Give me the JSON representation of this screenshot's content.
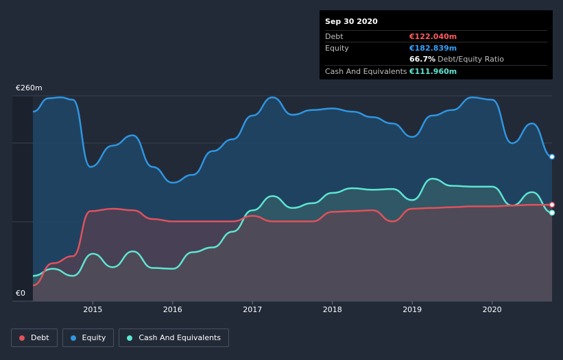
{
  "chart_data": {
    "type": "area",
    "currency_unit": "€m",
    "y_labels": [
      "€260m",
      "€0"
    ],
    "ylim": [
      0,
      260
    ],
    "x_ticks": [
      "2015",
      "2016",
      "2017",
      "2018",
      "2019",
      "2020"
    ],
    "xlim": [
      2014.25,
      2020.75
    ],
    "series": [
      {
        "name": "Equity",
        "color": "#2f96e0",
        "points": [
          [
            2014.25,
            240
          ],
          [
            2014.45,
            257
          ],
          [
            2014.6,
            258
          ],
          [
            2014.75,
            255
          ],
          [
            2014.97,
            170
          ],
          [
            2015.25,
            197
          ],
          [
            2015.5,
            210
          ],
          [
            2015.75,
            170
          ],
          [
            2016.0,
            150
          ],
          [
            2016.25,
            160
          ],
          [
            2016.5,
            190
          ],
          [
            2016.75,
            205
          ],
          [
            2017.0,
            235
          ],
          [
            2017.25,
            258
          ],
          [
            2017.5,
            236
          ],
          [
            2017.75,
            242
          ],
          [
            2018.0,
            244
          ],
          [
            2018.25,
            240
          ],
          [
            2018.5,
            233
          ],
          [
            2018.75,
            225
          ],
          [
            2019.0,
            208
          ],
          [
            2019.25,
            235
          ],
          [
            2019.5,
            242
          ],
          [
            2019.75,
            258
          ],
          [
            2020.0,
            255
          ],
          [
            2020.25,
            200
          ],
          [
            2020.5,
            225
          ],
          [
            2020.75,
            182.839
          ]
        ]
      },
      {
        "name": "Cash And Equivalents",
        "color": "#5ee5d2",
        "points": [
          [
            2014.25,
            32
          ],
          [
            2014.5,
            41
          ],
          [
            2014.75,
            32
          ],
          [
            2015.0,
            60
          ],
          [
            2015.25,
            43
          ],
          [
            2015.5,
            63
          ],
          [
            2015.75,
            42
          ],
          [
            2016.0,
            41
          ],
          [
            2016.25,
            62
          ],
          [
            2016.5,
            68
          ],
          [
            2016.75,
            88
          ],
          [
            2017.0,
            115
          ],
          [
            2017.25,
            133
          ],
          [
            2017.5,
            118
          ],
          [
            2017.75,
            124
          ],
          [
            2018.0,
            137
          ],
          [
            2018.25,
            143
          ],
          [
            2018.5,
            141
          ],
          [
            2018.75,
            142
          ],
          [
            2019.0,
            128
          ],
          [
            2019.25,
            155
          ],
          [
            2019.5,
            146
          ],
          [
            2019.75,
            145
          ],
          [
            2020.0,
            145
          ],
          [
            2020.25,
            121
          ],
          [
            2020.5,
            138
          ],
          [
            2020.75,
            111.96
          ]
        ]
      },
      {
        "name": "Debt",
        "color": "#e0525c",
        "points": [
          [
            2014.25,
            20
          ],
          [
            2014.5,
            48
          ],
          [
            2014.75,
            57
          ],
          [
            2014.97,
            114
          ],
          [
            2015.25,
            117
          ],
          [
            2015.5,
            115
          ],
          [
            2015.75,
            104
          ],
          [
            2016.0,
            101
          ],
          [
            2016.5,
            101
          ],
          [
            2016.75,
            101
          ],
          [
            2017.0,
            108
          ],
          [
            2017.25,
            101
          ],
          [
            2017.5,
            101
          ],
          [
            2017.75,
            101
          ],
          [
            2018.0,
            113
          ],
          [
            2018.25,
            114
          ],
          [
            2018.5,
            115
          ],
          [
            2018.75,
            101
          ],
          [
            2019.0,
            117
          ],
          [
            2019.25,
            118
          ],
          [
            2019.5,
            119
          ],
          [
            2019.75,
            120
          ],
          [
            2020.0,
            120
          ],
          [
            2020.25,
            121
          ],
          [
            2020.5,
            122
          ],
          [
            2020.75,
            122.04
          ]
        ]
      }
    ],
    "tooltip": {
      "date": "Sep 30 2020",
      "rows": [
        {
          "label": "Debt",
          "value": "€122.040m",
          "color": "#ff5a5f"
        },
        {
          "label": "Equity",
          "value": "€182.839m",
          "color": "#33a1ff"
        },
        {
          "label": "",
          "value": "66.7%",
          "sub": "Debt/Equity Ratio",
          "color": "#ffffff"
        },
        {
          "label": "Cash And Equivalents",
          "value": "€111.960m",
          "color": "#5ee5d2"
        }
      ]
    },
    "legend": [
      {
        "name": "Debt",
        "color": "#e0525c"
      },
      {
        "name": "Equity",
        "color": "#2f96e0"
      },
      {
        "name": "Cash And Equivalents",
        "color": "#5ee5d2"
      }
    ]
  }
}
